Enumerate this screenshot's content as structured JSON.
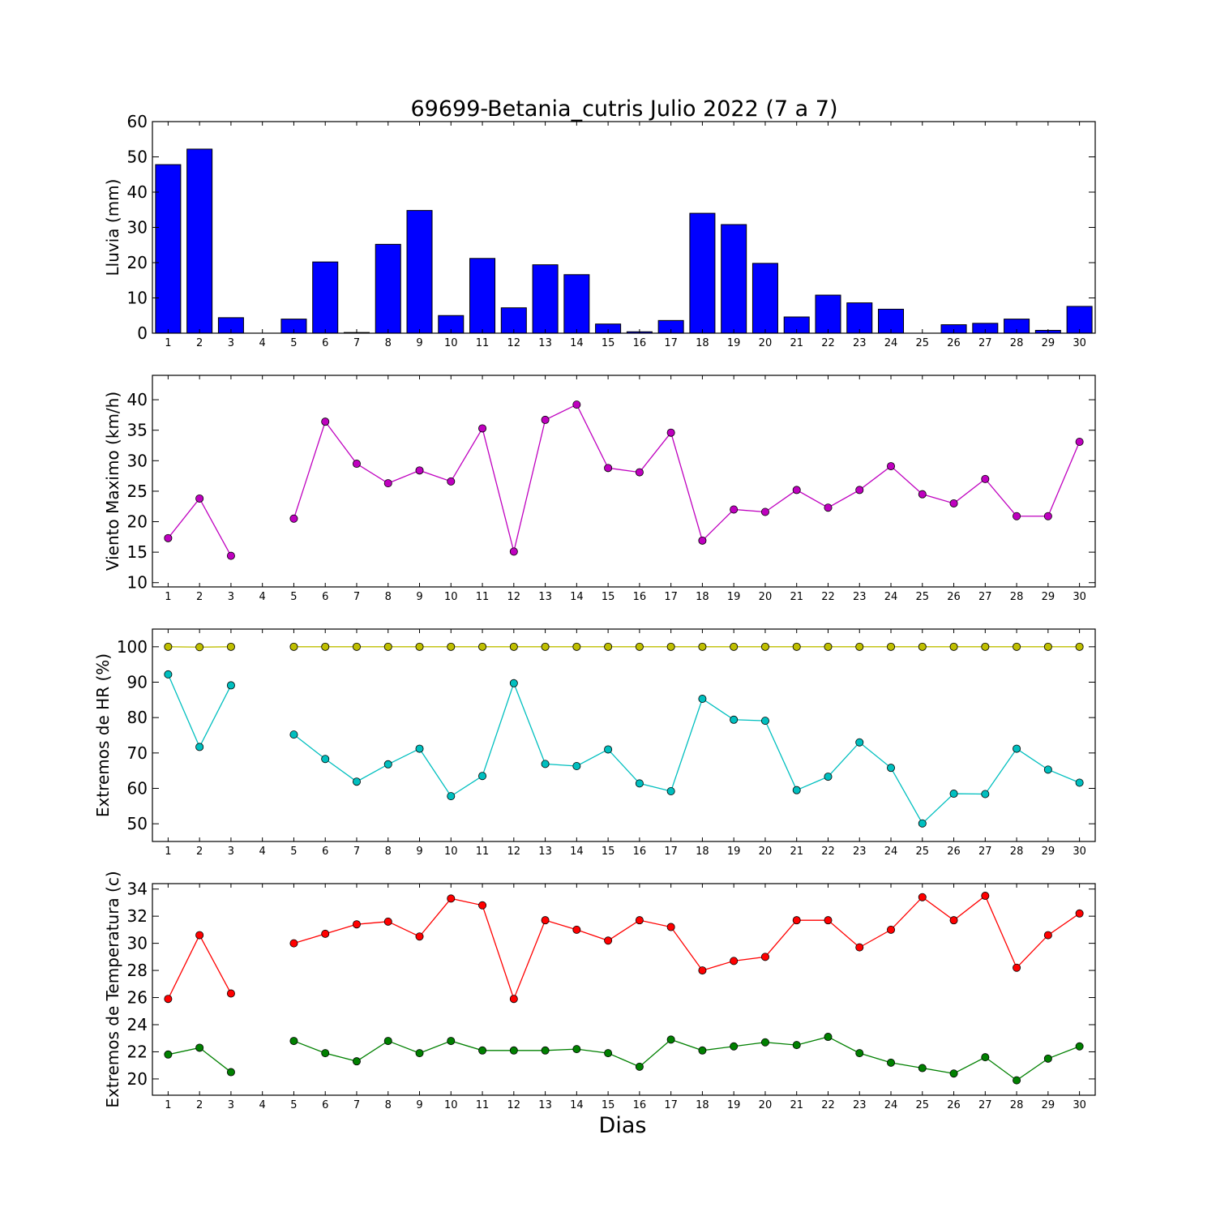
{
  "title": "69699-Betania_cutris Julio 2022  (7 a 7)",
  "xlabel": "Dias",
  "days": [
    1,
    2,
    3,
    4,
    5,
    6,
    7,
    8,
    9,
    10,
    11,
    12,
    13,
    14,
    15,
    16,
    17,
    18,
    19,
    20,
    21,
    22,
    23,
    24,
    25,
    26,
    27,
    28,
    29,
    30
  ],
  "chart_data": [
    {
      "type": "bar",
      "ylabel": "Lluvia (mm)",
      "ylim": [
        0,
        60
      ],
      "yticks": [
        0,
        10,
        20,
        30,
        40,
        50,
        60
      ],
      "series": [
        {
          "color": "#0000ff",
          "values": [
            47.8,
            52.2,
            4.4,
            0,
            4.0,
            20.2,
            0.2,
            25.2,
            34.8,
            5.0,
            21.2,
            7.2,
            19.4,
            16.6,
            2.6,
            0.4,
            3.6,
            34.0,
            30.8,
            19.8,
            4.6,
            10.8,
            8.6,
            6.8,
            0,
            2.4,
            2.8,
            4.0,
            0.8,
            7.6
          ]
        }
      ]
    },
    {
      "type": "line",
      "ylabel": "Viento Maximo (km/h)",
      "ylim": [
        9.3,
        44
      ],
      "yticks": [
        10,
        15,
        20,
        25,
        30,
        35,
        40
      ],
      "series": [
        {
          "color": "#bf00bf",
          "values": [
            17.3,
            23.8,
            14.4,
            null,
            20.5,
            36.4,
            29.5,
            26.3,
            28.4,
            26.6,
            35.3,
            15.1,
            36.7,
            39.2,
            28.8,
            28.1,
            34.6,
            16.9,
            22.0,
            21.6,
            25.2,
            22.3,
            25.2,
            29.1,
            24.5,
            23.0,
            27.0,
            20.9,
            20.9,
            33.1
          ]
        }
      ]
    },
    {
      "type": "line",
      "ylabel": "Extremos de HR (%)",
      "ylim": [
        45,
        105
      ],
      "yticks": [
        50,
        60,
        70,
        80,
        90,
        100
      ],
      "series": [
        {
          "color": "#bfbf00",
          "values": [
            100,
            99.9,
            100,
            null,
            100,
            100,
            100,
            100,
            100,
            100,
            100,
            100,
            100,
            100,
            100,
            100,
            100,
            100,
            100,
            100,
            100,
            100,
            100,
            100,
            100,
            100,
            100,
            100,
            100,
            100
          ]
        },
        {
          "color": "#00bfbf",
          "values": [
            92.2,
            71.7,
            89.1,
            null,
            75.2,
            68.3,
            61.9,
            66.8,
            71.2,
            57.8,
            63.5,
            89.7,
            66.9,
            66.3,
            71.0,
            61.4,
            59.2,
            85.3,
            79.4,
            79.1,
            59.5,
            63.3,
            73.0,
            65.8,
            50.1,
            58.5,
            58.4,
            71.2,
            65.3,
            61.6
          ]
        }
      ]
    },
    {
      "type": "line",
      "ylabel": "Extremos de Temperatura (c)",
      "ylim": [
        18.8,
        34.4
      ],
      "yticks": [
        20,
        22,
        24,
        26,
        28,
        30,
        32,
        34
      ],
      "series": [
        {
          "color": "#ff0000",
          "values": [
            25.9,
            30.6,
            26.3,
            null,
            30.0,
            30.7,
            31.4,
            31.6,
            30.5,
            33.3,
            32.8,
            25.9,
            31.7,
            31.0,
            30.2,
            31.7,
            31.2,
            28.0,
            28.7,
            29.0,
            31.7,
            31.7,
            29.7,
            31.0,
            33.4,
            31.7,
            33.5,
            28.2,
            30.6,
            32.2
          ]
        },
        {
          "color": "#008000",
          "values": [
            21.8,
            22.3,
            20.5,
            null,
            22.8,
            21.9,
            21.3,
            22.8,
            21.9,
            22.8,
            22.1,
            22.1,
            22.1,
            22.2,
            21.9,
            20.9,
            22.9,
            22.1,
            22.4,
            22.7,
            22.5,
            23.1,
            21.9,
            21.2,
            20.8,
            20.4,
            21.6,
            19.9,
            21.5,
            22.4
          ]
        }
      ]
    }
  ]
}
